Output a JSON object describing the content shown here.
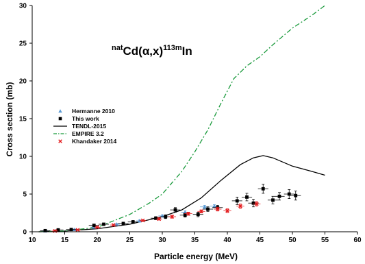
{
  "chart_data": {
    "type": "scatter",
    "title_parts": {
      "sup1": "nat",
      "main1": "Cd(",
      "alpha": "α",
      "main2": ",x)",
      "sup2": "113m",
      "main3": "In"
    },
    "xlabel": "Particle energy (MeV)",
    "ylabel": "Cross section (mb)",
    "xlim": [
      10,
      60
    ],
    "ylim": [
      0,
      30
    ],
    "xticks": [
      10,
      15,
      20,
      25,
      30,
      35,
      40,
      45,
      50,
      55,
      60
    ],
    "yticks": [
      0,
      5,
      10,
      15,
      20,
      25,
      30
    ],
    "grid": false,
    "legend_position": "left",
    "series": [
      {
        "name": "Hermanne 2010",
        "kind": "scatter",
        "marker": "triangle",
        "color": "#5b9bd5",
        "points": [
          {
            "x": 12.0,
            "y": 0.12,
            "xerr": 0.4,
            "yerr": 0.05
          },
          {
            "x": 16.5,
            "y": 0.3,
            "xerr": 0.5,
            "yerr": 0.06
          },
          {
            "x": 19.5,
            "y": 0.62,
            "xerr": 0.5,
            "yerr": 0.08
          },
          {
            "x": 23.0,
            "y": 1.0,
            "xerr": 0.5,
            "yerr": 0.1
          },
          {
            "x": 26.5,
            "y": 1.45,
            "xerr": 0.5,
            "yerr": 0.12
          },
          {
            "x": 30.0,
            "y": 2.1,
            "xerr": 0.6,
            "yerr": 0.15
          },
          {
            "x": 33.5,
            "y": 2.6,
            "xerr": 0.6,
            "yerr": 0.18
          },
          {
            "x": 36.5,
            "y": 3.3,
            "xerr": 0.7,
            "yerr": 0.2
          },
          {
            "x": 38.0,
            "y": 3.4,
            "xerr": 0.7,
            "yerr": 0.2
          }
        ]
      },
      {
        "name": "This work",
        "kind": "scatter",
        "marker": "square",
        "color": "#000000",
        "points": [
          {
            "x": 12.0,
            "y": 0.15,
            "xerr": 0.8,
            "yerr": 0.1
          },
          {
            "x": 14.0,
            "y": 0.25,
            "xerr": 0.8,
            "yerr": 0.1
          },
          {
            "x": 16.0,
            "y": 0.3,
            "xerr": 0.8,
            "yerr": 0.1
          },
          {
            "x": 19.5,
            "y": 0.85,
            "xerr": 0.8,
            "yerr": 0.15
          },
          {
            "x": 21.0,
            "y": 1.0,
            "xerr": 0.8,
            "yerr": 0.15
          },
          {
            "x": 24.0,
            "y": 1.1,
            "xerr": 0.8,
            "yerr": 0.15
          },
          {
            "x": 25.5,
            "y": 1.3,
            "xerr": 0.8,
            "yerr": 0.2
          },
          {
            "x": 29.0,
            "y": 1.8,
            "xerr": 0.8,
            "yerr": 0.2
          },
          {
            "x": 30.5,
            "y": 2.0,
            "xerr": 0.8,
            "yerr": 0.25
          },
          {
            "x": 32.0,
            "y": 2.9,
            "xerr": 0.8,
            "yerr": 0.3
          },
          {
            "x": 33.5,
            "y": 2.2,
            "xerr": 0.8,
            "yerr": 0.25
          },
          {
            "x": 35.5,
            "y": 2.3,
            "xerr": 0.8,
            "yerr": 0.3
          },
          {
            "x": 37.0,
            "y": 3.0,
            "xerr": 0.8,
            "yerr": 0.3
          },
          {
            "x": 38.5,
            "y": 3.2,
            "xerr": 0.8,
            "yerr": 0.3
          },
          {
            "x": 41.5,
            "y": 4.1,
            "xerr": 0.8,
            "yerr": 0.5
          },
          {
            "x": 43.0,
            "y": 4.6,
            "xerr": 0.8,
            "yerr": 0.5
          },
          {
            "x": 44.0,
            "y": 3.8,
            "xerr": 0.8,
            "yerr": 0.5
          },
          {
            "x": 45.5,
            "y": 5.7,
            "xerr": 0.8,
            "yerr": 0.6
          },
          {
            "x": 47.0,
            "y": 4.2,
            "xerr": 0.8,
            "yerr": 0.5
          },
          {
            "x": 48.0,
            "y": 4.7,
            "xerr": 0.8,
            "yerr": 0.5
          },
          {
            "x": 49.5,
            "y": 5.0,
            "xerr": 0.8,
            "yerr": 0.6
          },
          {
            "x": 50.5,
            "y": 4.8,
            "xerr": 0.8,
            "yerr": 0.6
          }
        ]
      },
      {
        "name": "TENDL-2015",
        "kind": "line",
        "dash": "solid",
        "color": "#000000",
        "points": [
          {
            "x": 11,
            "y": 0.0
          },
          {
            "x": 15,
            "y": 0.1
          },
          {
            "x": 20,
            "y": 0.4
          },
          {
            "x": 25,
            "y": 1.0
          },
          {
            "x": 30,
            "y": 2.0
          },
          {
            "x": 33,
            "y": 2.9
          },
          {
            "x": 36,
            "y": 4.5
          },
          {
            "x": 39,
            "y": 6.8
          },
          {
            "x": 42,
            "y": 8.9
          },
          {
            "x": 44,
            "y": 9.8
          },
          {
            "x": 45.5,
            "y": 10.1
          },
          {
            "x": 47,
            "y": 9.8
          },
          {
            "x": 50,
            "y": 8.7
          },
          {
            "x": 53,
            "y": 8.0
          },
          {
            "x": 55,
            "y": 7.5
          }
        ]
      },
      {
        "name": "EMPIRE 3.2",
        "kind": "line",
        "dash": "dashdot",
        "color": "#1a9a3c",
        "points": [
          {
            "x": 11,
            "y": 0.0
          },
          {
            "x": 15,
            "y": 0.1
          },
          {
            "x": 20,
            "y": 0.6
          },
          {
            "x": 25,
            "y": 2.3
          },
          {
            "x": 28,
            "y": 3.8
          },
          {
            "x": 30,
            "y": 5.0
          },
          {
            "x": 33,
            "y": 8.0
          },
          {
            "x": 35,
            "y": 10.6
          },
          {
            "x": 37,
            "y": 13.5
          },
          {
            "x": 39,
            "y": 17.0
          },
          {
            "x": 41,
            "y": 20.3
          },
          {
            "x": 43,
            "y": 22.0
          },
          {
            "x": 45,
            "y": 23.2
          },
          {
            "x": 47,
            "y": 24.8
          },
          {
            "x": 50,
            "y": 27.0
          },
          {
            "x": 53,
            "y": 28.7
          },
          {
            "x": 55,
            "y": 30.0
          }
        ]
      },
      {
        "name": "Khandaker 2014",
        "kind": "scatter",
        "marker": "x",
        "color": "#e31a1c",
        "points": [
          {
            "x": 13.5,
            "y": 0.1,
            "xerr": 0.5,
            "yerr": 0.05
          },
          {
            "x": 17.0,
            "y": 0.25,
            "xerr": 0.5,
            "yerr": 0.05
          },
          {
            "x": 20.0,
            "y": 0.6,
            "xerr": 0.5,
            "yerr": 0.08
          },
          {
            "x": 22.5,
            "y": 0.9,
            "xerr": 0.5,
            "yerr": 0.1
          },
          {
            "x": 27.0,
            "y": 1.5,
            "xerr": 0.5,
            "yerr": 0.12
          },
          {
            "x": 29.5,
            "y": 1.7,
            "xerr": 0.5,
            "yerr": 0.15
          },
          {
            "x": 31.5,
            "y": 2.0,
            "xerr": 0.6,
            "yerr": 0.2
          },
          {
            "x": 34.0,
            "y": 2.4,
            "xerr": 0.6,
            "yerr": 0.2
          },
          {
            "x": 36.0,
            "y": 2.7,
            "xerr": 0.6,
            "yerr": 0.2
          },
          {
            "x": 38.5,
            "y": 3.0,
            "xerr": 0.6,
            "yerr": 0.25
          },
          {
            "x": 40.0,
            "y": 2.8,
            "xerr": 0.6,
            "yerr": 0.25
          },
          {
            "x": 42.0,
            "y": 3.4,
            "xerr": 0.6,
            "yerr": 0.3
          },
          {
            "x": 44.5,
            "y": 3.7,
            "xerr": 0.6,
            "yerr": 0.3
          }
        ]
      }
    ]
  }
}
